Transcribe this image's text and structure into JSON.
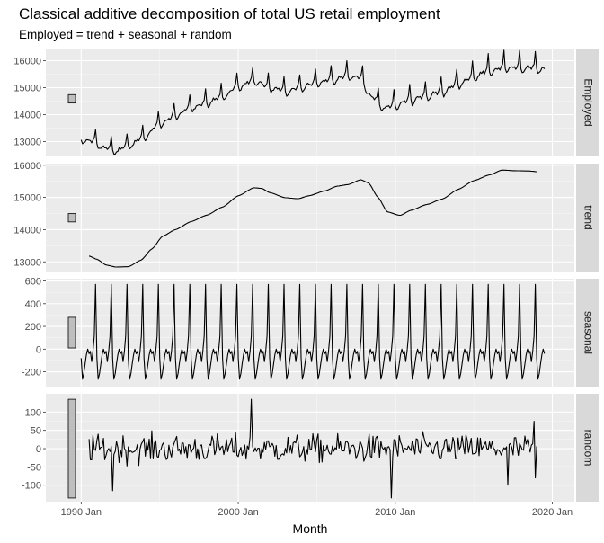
{
  "chart_data": {
    "type": "line",
    "title": "Classical additive decomposition of total US retail employment",
    "subtitle": "Employed = trend + seasonal + random",
    "xlabel": "Month",
    "x_ticks": [
      "1990 Jan",
      "2000 Jan",
      "2010 Jan",
      "2020 Jan"
    ],
    "x_tick_years": [
      1990,
      2000,
      2010,
      2020
    ],
    "xlim": [
      1987.75,
      2021.4
    ],
    "x_start_year": 1990,
    "x_end_year": 2019.5,
    "grid": true,
    "panels": [
      {
        "name": "Employed",
        "ylim": [
          12450,
          16450
        ],
        "yticks": [
          13000,
          14000,
          15000,
          16000
        ],
        "ytick_labels": [
          "13000",
          "14000",
          "15000",
          "16000"
        ],
        "scale_bar": [
          14429,
          14741
        ],
        "seasonal_amplitude": 900,
        "anchors": [
          [
            1990.0,
            13100
          ],
          [
            1990.8,
            13050
          ],
          [
            1991.5,
            12800
          ],
          [
            1992.3,
            12700
          ],
          [
            1993.0,
            12900
          ],
          [
            1994.0,
            13200
          ],
          [
            1995.0,
            13700
          ],
          [
            1996.0,
            14000
          ],
          [
            1997.0,
            14300
          ],
          [
            1998.0,
            14500
          ],
          [
            1999.0,
            14700
          ],
          [
            2000.0,
            15100
          ],
          [
            2001.0,
            15300
          ],
          [
            2002.0,
            15050
          ],
          [
            2003.0,
            14900
          ],
          [
            2004.0,
            15050
          ],
          [
            2005.0,
            15250
          ],
          [
            2006.0,
            15350
          ],
          [
            2007.0,
            15500
          ],
          [
            2007.8,
            15400
          ],
          [
            2008.5,
            14700
          ],
          [
            2009.3,
            14300
          ],
          [
            2010.0,
            14400
          ],
          [
            2011.0,
            14600
          ],
          [
            2012.0,
            14750
          ],
          [
            2013.0,
            14900
          ],
          [
            2014.0,
            15200
          ],
          [
            2015.0,
            15450
          ],
          [
            2016.0,
            15700
          ],
          [
            2017.0,
            15800
          ],
          [
            2018.0,
            15800
          ],
          [
            2019.5,
            15750
          ]
        ]
      },
      {
        "name": "trend",
        "ylim": [
          12700,
          16050
        ],
        "yticks": [
          13000,
          14000,
          15000,
          16000
        ],
        "ytick_labels": [
          "13000",
          "14000",
          "15000",
          "16000"
        ],
        "scale_bar": [
          14240,
          14500
        ],
        "x_start_year": 1990.5,
        "x_end_year": 2019.0,
        "anchors": [
          [
            1990.5,
            13180
          ],
          [
            1991.0,
            13080
          ],
          [
            1991.6,
            12900
          ],
          [
            1992.2,
            12840
          ],
          [
            1993.0,
            12850
          ],
          [
            1993.8,
            13050
          ],
          [
            1994.5,
            13400
          ],
          [
            1995.2,
            13800
          ],
          [
            1996.0,
            14000
          ],
          [
            1997.0,
            14250
          ],
          [
            1998.0,
            14450
          ],
          [
            1999.0,
            14700
          ],
          [
            2000.0,
            15050
          ],
          [
            2001.0,
            15300
          ],
          [
            2001.5,
            15280
          ],
          [
            2002.0,
            15150
          ],
          [
            2003.0,
            14990
          ],
          [
            2003.8,
            14960
          ],
          [
            2004.5,
            15050
          ],
          [
            2005.5,
            15200
          ],
          [
            2006.3,
            15350
          ],
          [
            2007.0,
            15400
          ],
          [
            2007.8,
            15550
          ],
          [
            2008.3,
            15450
          ],
          [
            2008.9,
            15000
          ],
          [
            2009.5,
            14550
          ],
          [
            2010.3,
            14440
          ],
          [
            2011.0,
            14600
          ],
          [
            2012.0,
            14780
          ],
          [
            2013.0,
            14950
          ],
          [
            2014.0,
            15250
          ],
          [
            2015.0,
            15520
          ],
          [
            2016.0,
            15700
          ],
          [
            2016.8,
            15850
          ],
          [
            2017.5,
            15830
          ],
          [
            2018.5,
            15820
          ],
          [
            2019.0,
            15800
          ]
        ]
      },
      {
        "name": "seasonal",
        "ylim": [
          -330,
          620
        ],
        "yticks": [
          -200,
          0,
          200,
          400,
          600
        ],
        "ytick_labels": [
          "-200",
          "0",
          "200",
          "400",
          "600"
        ],
        "scale_bar": [
          10,
          280
        ],
        "monthly_pattern": [
          -80,
          -265,
          -215,
          -130,
          -50,
          0,
          -40,
          -20,
          -110,
          -20,
          115,
          570
        ]
      },
      {
        "name": "random",
        "ylim": [
          -145,
          150
        ],
        "yticks": [
          -100,
          -50,
          0,
          50,
          100
        ],
        "ytick_labels": [
          "-100",
          "-50",
          "0",
          "50",
          "100"
        ],
        "scale_bar": [
          -135,
          135
        ],
        "x_start_year": 1990.5,
        "x_end_year": 2019.0,
        "noise_scale": 32,
        "spikes": [
          [
            2000.8,
            135
          ],
          [
            2009.75,
            -135
          ],
          [
            1992.0,
            -115
          ],
          [
            2017.2,
            -100
          ],
          [
            2018.8,
            75
          ],
          [
            2018.9,
            -80
          ]
        ]
      }
    ]
  }
}
